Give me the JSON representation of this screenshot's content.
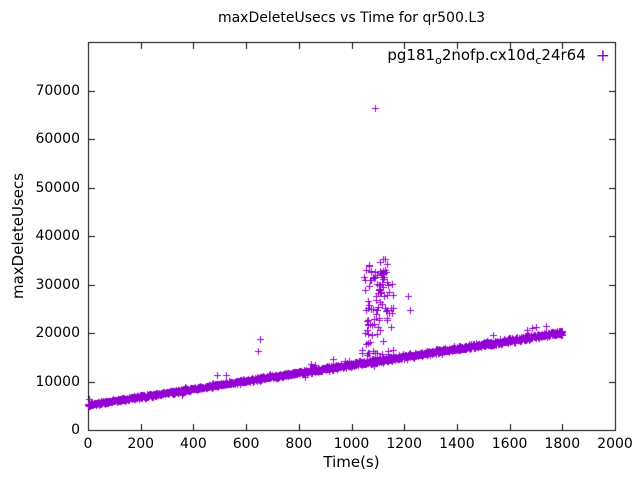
{
  "figure": {
    "background": "#ffffff"
  },
  "chart_data": {
    "type": "scatter",
    "title": "maxDeleteUsecs vs Time for qr500.L3",
    "xlabel": "Time(s)",
    "ylabel": "maxDeleteUsecs",
    "xlim": [
      0,
      2000
    ],
    "ylim": [
      0,
      80000
    ],
    "xticks": [
      0,
      200,
      400,
      600,
      800,
      1000,
      1200,
      1400,
      1600,
      1800,
      2000
    ],
    "yticks": [
      0,
      10000,
      20000,
      30000,
      40000,
      50000,
      60000,
      70000
    ],
    "grid": false,
    "legend": {
      "position": "top-right-inside",
      "label": "pg181_o2nofp.cx10d_c24r64",
      "label_parts": [
        {
          "text": "pg181"
        },
        {
          "text": "o",
          "sub": true
        },
        {
          "text": "2nofp.cx10d"
        },
        {
          "text": "c",
          "sub": true
        },
        {
          "text": "24r64"
        }
      ],
      "marker": "plus"
    },
    "marker": {
      "shape": "plus",
      "color": "#9400d3",
      "size": 3.5
    },
    "series": [
      {
        "name": "pg181_o2nofp.cx10d_c24r64",
        "description": "maxDeleteUsecs rises roughly linearly from ~5200us at t=0 to ~20100us at t=1800, in a dense noisy band, with an outlier burst near t=1040-1160 reaching ~35500us and a single extreme point ~66300us at t~1090",
        "trend": {
          "seed": 42,
          "points": 1900,
          "x_start": 0,
          "x_end": 1800,
          "y_start": 5200,
          "y_end": 20100,
          "noise_base": 450,
          "noise_grow": 320,
          "spike_prob": 0.012,
          "spike_max": 2200
        },
        "burst": {
          "seed": 7,
          "points": 95,
          "x_min": 1040,
          "x_max": 1160,
          "y_min": 15500,
          "y_max": 33000,
          "high_points": 9,
          "high_min": 30000,
          "high_max": 35500
        },
        "outliers": [
          [
            647,
            16200
          ],
          [
            652,
            18700
          ],
          [
            930,
            14600
          ],
          [
            1090,
            66300
          ],
          [
            1215,
            27600
          ],
          [
            1222,
            24800
          ]
        ]
      }
    ]
  }
}
